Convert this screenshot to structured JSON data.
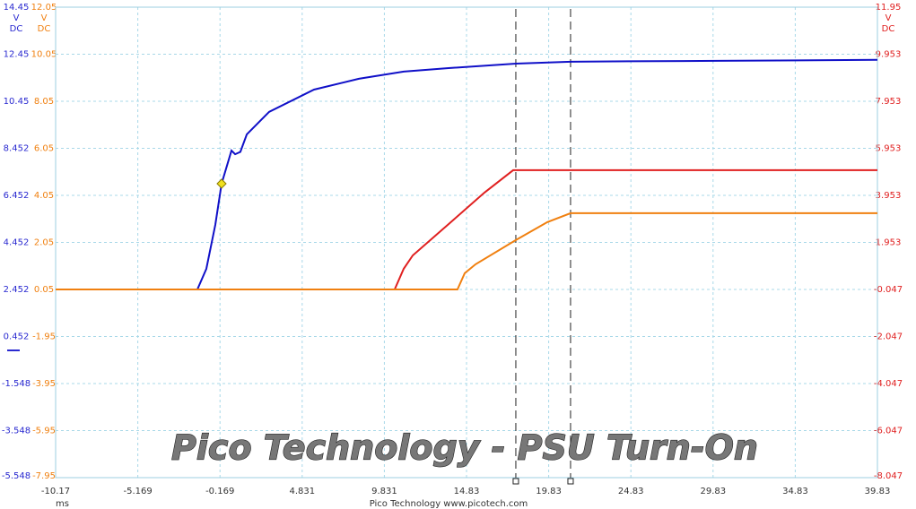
{
  "chart_data": {
    "type": "line",
    "title": "Pico Technology - PSU Turn-On",
    "footer": "Pico Technology  www.picotech.com",
    "x_label": "ms",
    "xlim": [
      -10.17,
      39.83
    ],
    "xticks": [
      -10.17,
      -5.169,
      -0.169,
      4.831,
      9.831,
      14.83,
      19.83,
      24.83,
      29.83,
      34.83,
      39.83
    ],
    "ylim": [
      -5.548,
      14.45
    ],
    "yticks": [
      14.45,
      12.45,
      10.45,
      8.452,
      6.452,
      4.452,
      2.452,
      0.452,
      -1.548,
      -3.548,
      -5.548
    ],
    "y_label": [
      "V",
      "DC"
    ],
    "y_color": "#2a2ad0",
    "y2lim": [
      -7.95,
      12.05
    ],
    "y2ticks": [
      12.05,
      10.05,
      8.05,
      6.05,
      4.05,
      2.05,
      0.05,
      -1.95,
      -3.95,
      -5.95,
      -7.95
    ],
    "y2_label": [
      "V",
      "DC"
    ],
    "y2_color": "#f08010",
    "y3lim": [
      -8.047,
      11.95
    ],
    "y3ticks": [
      11.95,
      9.953,
      7.953,
      5.953,
      3.953,
      1.953,
      -0.047,
      -2.047,
      -4.047,
      -6.047,
      -8.047
    ],
    "y3_label": [
      "V",
      "DC"
    ],
    "y3_color": "#e02020",
    "grid": true,
    "cursors": [
      17.83,
      21.16
    ],
    "trigger": {
      "x": -0.072,
      "y": 6.947,
      "color": "#f0e020"
    },
    "series": [
      {
        "color": "#1010c8",
        "axis": "y",
        "x": [
          -10.17,
          -1.546,
          -1.0,
          -0.454,
          -0.072,
          0.53,
          0.75,
          1.07,
          1.46,
          2.82,
          5.55,
          8.28,
          11.01,
          13.74,
          17.83,
          21.16,
          24.66,
          30.1,
          39.83
        ],
        "values": [
          2.452,
          2.452,
          3.328,
          5.2,
          6.947,
          8.357,
          8.2,
          8.3,
          9.043,
          10.0,
          10.947,
          11.405,
          11.71,
          11.86,
          12.05,
          12.13,
          12.15,
          12.17,
          12.21
        ]
      },
      {
        "color": "#e02020",
        "axis": "y3",
        "x": [
          -10.17,
          10.46,
          11.01,
          11.56,
          13.74,
          15.92,
          17.67,
          39.83
        ],
        "values": [
          -0.047,
          -0.047,
          0.83,
          1.4,
          2.73,
          4.07,
          5.02,
          5.02
        ]
      },
      {
        "color": "#f08010",
        "axis": "y2",
        "x": [
          -10.17,
          14.28,
          14.72,
          15.38,
          17.83,
          19.74,
          21.16,
          39.83
        ],
        "values": [
          0.05,
          0.05,
          0.74,
          1.12,
          2.15,
          2.91,
          3.29,
          3.29
        ]
      }
    ]
  }
}
